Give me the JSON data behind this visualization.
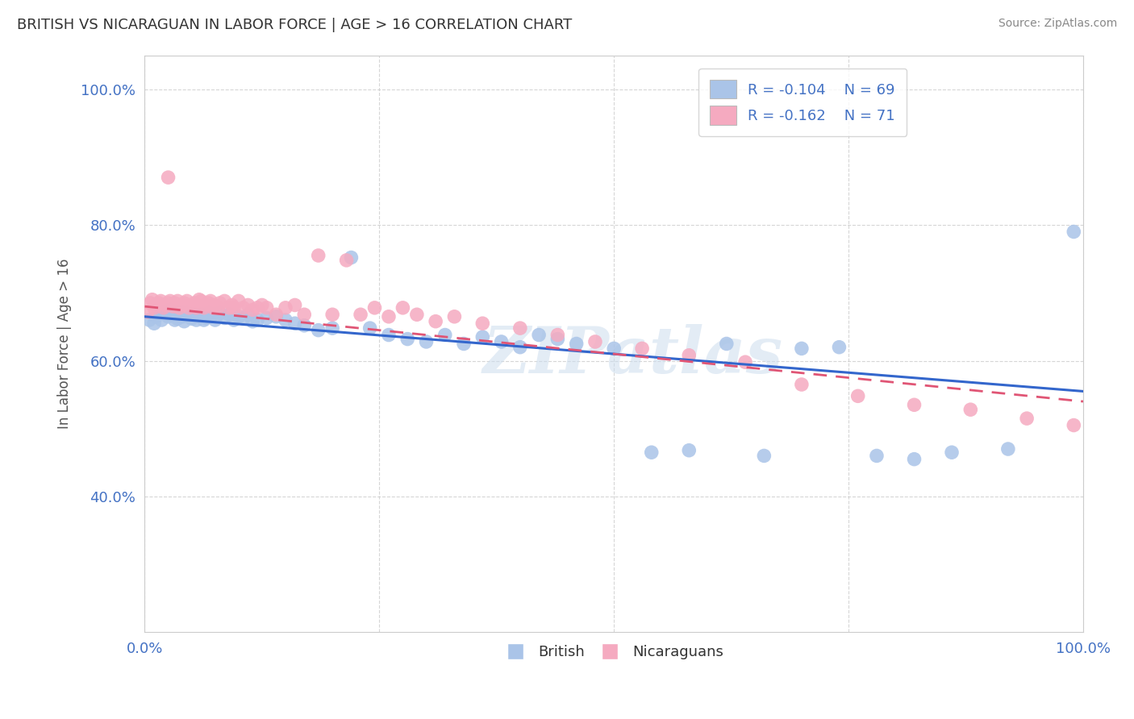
{
  "title": "BRITISH VS NICARAGUAN IN LABOR FORCE | AGE > 16 CORRELATION CHART",
  "source": "Source: ZipAtlas.com",
  "ylabel": "In Labor Force | Age > 16",
  "xlim": [
    0.0,
    1.0
  ],
  "ylim": [
    0.2,
    1.05
  ],
  "xticks": [
    0.0,
    0.25,
    0.5,
    0.75,
    1.0
  ],
  "yticks": [
    0.4,
    0.6,
    0.8,
    1.0
  ],
  "xtick_labels": [
    "0.0%",
    "",
    "",
    "",
    "100.0%"
  ],
  "ytick_labels": [
    "40.0%",
    "60.0%",
    "80.0%",
    "100.0%"
  ],
  "british_R": -0.104,
  "british_N": 69,
  "nicaraguan_R": -0.162,
  "nicaraguan_N": 71,
  "british_color": "#aac4e8",
  "nicaraguan_color": "#f5aac0",
  "british_line_color": "#3366cc",
  "nicaraguan_line_color": "#e05575",
  "legend_label_british": "British",
  "legend_label_nicaraguan": "Nicaraguans",
  "watermark": "ZIPatlas",
  "title_color": "#333333",
  "axis_color": "#4472c4",
  "source_color": "#888888",
  "british_x": [
    0.005,
    0.01,
    0.012,
    0.015,
    0.018,
    0.02,
    0.022,
    0.025,
    0.027,
    0.03,
    0.032,
    0.035,
    0.037,
    0.04,
    0.042,
    0.045,
    0.047,
    0.05,
    0.053,
    0.055,
    0.058,
    0.06,
    0.063,
    0.065,
    0.068,
    0.07,
    0.073,
    0.075,
    0.08,
    0.085,
    0.09,
    0.095,
    0.1,
    0.105,
    0.11,
    0.115,
    0.12,
    0.13,
    0.14,
    0.15,
    0.16,
    0.17,
    0.185,
    0.2,
    0.22,
    0.24,
    0.26,
    0.28,
    0.3,
    0.32,
    0.34,
    0.36,
    0.38,
    0.4,
    0.42,
    0.44,
    0.46,
    0.5,
    0.54,
    0.58,
    0.62,
    0.66,
    0.7,
    0.74,
    0.78,
    0.82,
    0.86,
    0.92,
    0.99
  ],
  "british_y": [
    0.66,
    0.655,
    0.665,
    0.668,
    0.66,
    0.67,
    0.672,
    0.665,
    0.675,
    0.668,
    0.66,
    0.662,
    0.672,
    0.665,
    0.658,
    0.67,
    0.668,
    0.662,
    0.668,
    0.66,
    0.665,
    0.668,
    0.66,
    0.663,
    0.67,
    0.665,
    0.668,
    0.66,
    0.67,
    0.663,
    0.668,
    0.66,
    0.665,
    0.662,
    0.668,
    0.658,
    0.66,
    0.663,
    0.665,
    0.66,
    0.655,
    0.652,
    0.645,
    0.648,
    0.752,
    0.648,
    0.638,
    0.632,
    0.628,
    0.638,
    0.625,
    0.635,
    0.628,
    0.62,
    0.638,
    0.632,
    0.625,
    0.618,
    0.465,
    0.468,
    0.625,
    0.46,
    0.618,
    0.62,
    0.46,
    0.455,
    0.465,
    0.47,
    0.79
  ],
  "nicaraguan_x": [
    0.003,
    0.006,
    0.008,
    0.01,
    0.012,
    0.015,
    0.017,
    0.02,
    0.022,
    0.025,
    0.027,
    0.03,
    0.032,
    0.035,
    0.037,
    0.04,
    0.042,
    0.045,
    0.047,
    0.05,
    0.053,
    0.055,
    0.058,
    0.06,
    0.063,
    0.065,
    0.068,
    0.07,
    0.073,
    0.075,
    0.078,
    0.08,
    0.085,
    0.09,
    0.093,
    0.095,
    0.1,
    0.105,
    0.11,
    0.115,
    0.12,
    0.125,
    0.13,
    0.14,
    0.15,
    0.16,
    0.17,
    0.185,
    0.2,
    0.215,
    0.23,
    0.245,
    0.26,
    0.275,
    0.29,
    0.31,
    0.33,
    0.36,
    0.4,
    0.44,
    0.48,
    0.53,
    0.58,
    0.64,
    0.7,
    0.76,
    0.82,
    0.88,
    0.94,
    0.99,
    0.025
  ],
  "nicaraguan_y": [
    0.672,
    0.685,
    0.69,
    0.678,
    0.682,
    0.685,
    0.688,
    0.678,
    0.682,
    0.685,
    0.688,
    0.68,
    0.685,
    0.688,
    0.678,
    0.682,
    0.685,
    0.688,
    0.678,
    0.682,
    0.685,
    0.678,
    0.69,
    0.688,
    0.678,
    0.682,
    0.685,
    0.688,
    0.678,
    0.682,
    0.678,
    0.685,
    0.688,
    0.678,
    0.682,
    0.678,
    0.688,
    0.678,
    0.682,
    0.675,
    0.678,
    0.682,
    0.678,
    0.668,
    0.678,
    0.682,
    0.668,
    0.755,
    0.668,
    0.748,
    0.668,
    0.678,
    0.665,
    0.678,
    0.668,
    0.658,
    0.665,
    0.655,
    0.648,
    0.638,
    0.628,
    0.618,
    0.608,
    0.598,
    0.565,
    0.548,
    0.535,
    0.528,
    0.515,
    0.505,
    0.87
  ]
}
